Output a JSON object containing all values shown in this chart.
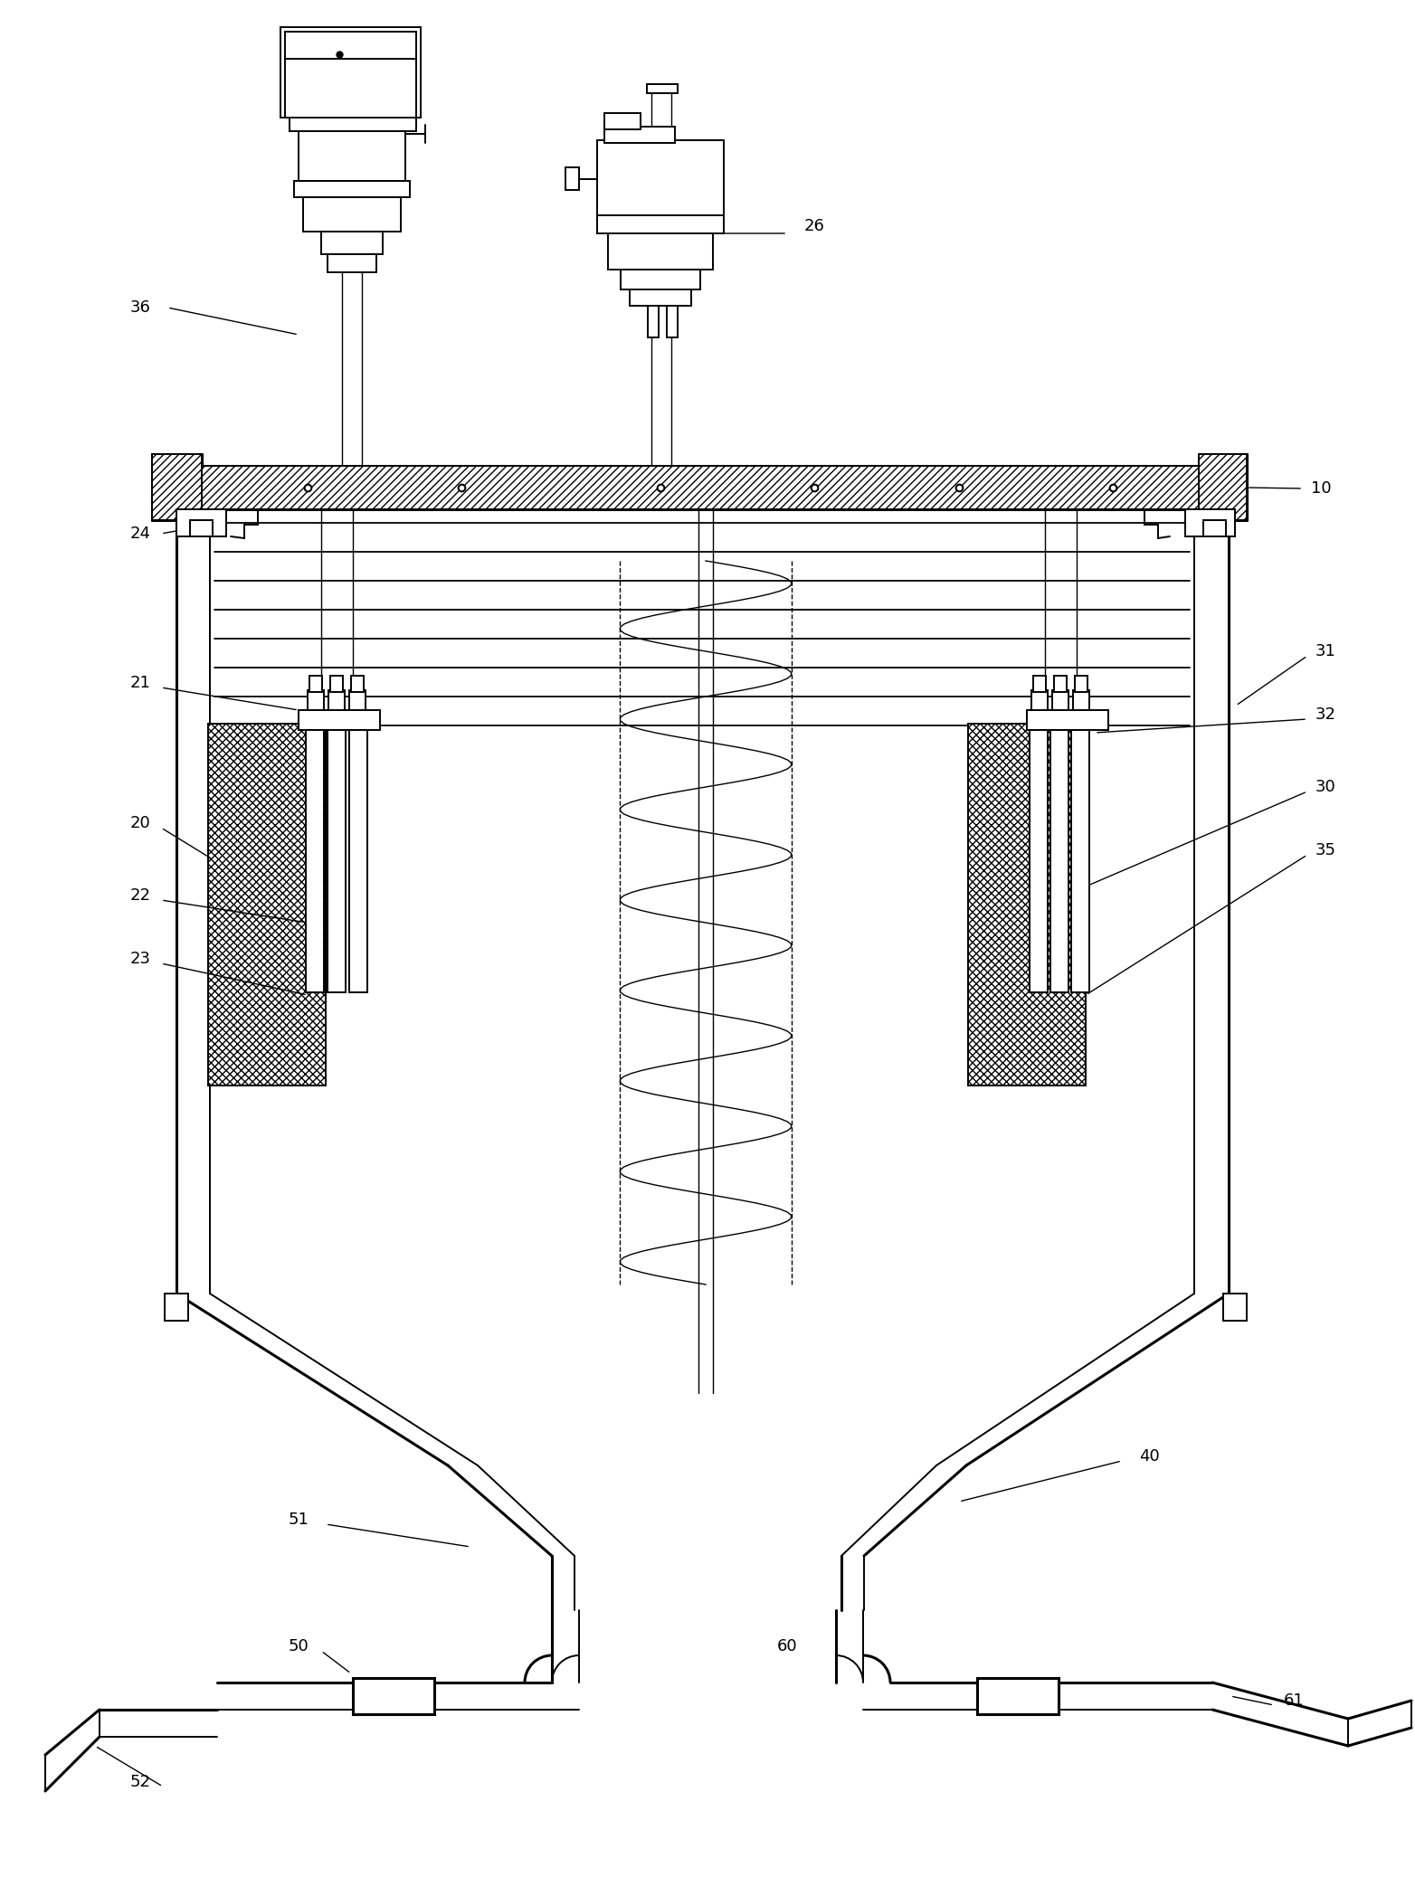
{
  "bg_color": "#ffffff",
  "line_color": "#000000",
  "figsize": [
    15.64,
    20.96
  ],
  "dpi": 100,
  "font_size": 13,
  "lw": 1.4,
  "lw_thick": 2.2,
  "lw_thin": 1.0
}
